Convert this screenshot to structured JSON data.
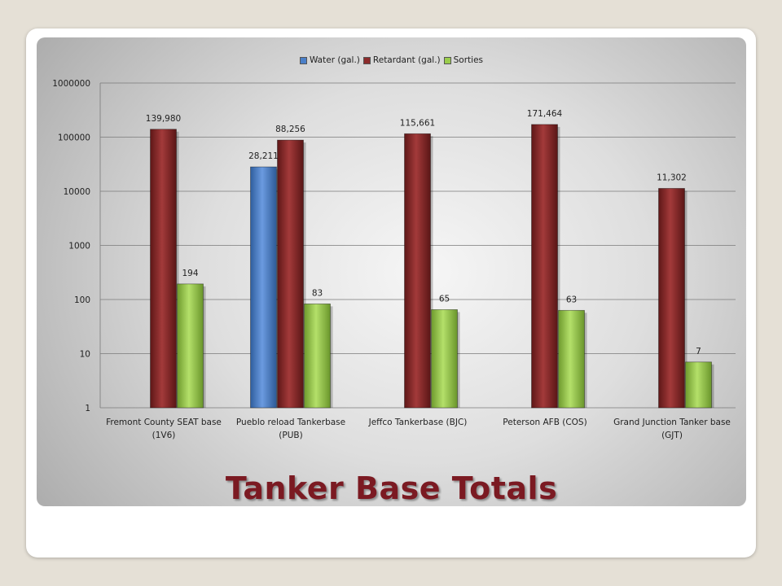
{
  "slide": {
    "title": "Tanker Base Totals"
  },
  "chart_data": {
    "type": "bar",
    "scale": "log",
    "ylim": [
      1,
      1000000
    ],
    "y_ticks": [
      "1",
      "10",
      "100",
      "1000",
      "10000",
      "100000",
      "1000000"
    ],
    "grid": true,
    "legend_position": "top",
    "categories": [
      "Fremont County SEAT base (1V6)",
      "Pueblo reload Tankerbase (PUB)",
      "Jeffco Tankerbase (BJC)",
      "Peterson AFB (COS)",
      "Grand Junction Tanker base (GJT)"
    ],
    "category_lines": [
      [
        "Fremont County SEAT base",
        "(1V6)"
      ],
      [
        "Pueblo reload Tankerbase",
        "(PUB)"
      ],
      [
        "Jeffco Tankerbase (BJC)",
        ""
      ],
      [
        "Peterson AFB (COS)",
        ""
      ],
      [
        "Grand Junction Tanker base",
        "(GJT)"
      ]
    ],
    "series": [
      {
        "name": "Water (gal.)",
        "color": "#4a7fc8",
        "values": [
          null,
          28211,
          null,
          null,
          null
        ],
        "labels": [
          "",
          "28,211",
          "",
          "",
          ""
        ]
      },
      {
        "name": "Retardant (gal.)",
        "color": "#8c2b2b",
        "values": [
          139980,
          88256,
          115661,
          171464,
          11302
        ],
        "labels": [
          "139,980",
          "88,256",
          "115,661",
          "171,464",
          "11,302"
        ]
      },
      {
        "name": "Sorties",
        "color": "#9acd4c",
        "values": [
          194,
          83,
          65,
          63,
          7
        ],
        "labels": [
          "194",
          "83",
          "65",
          "63",
          "7"
        ]
      }
    ]
  }
}
